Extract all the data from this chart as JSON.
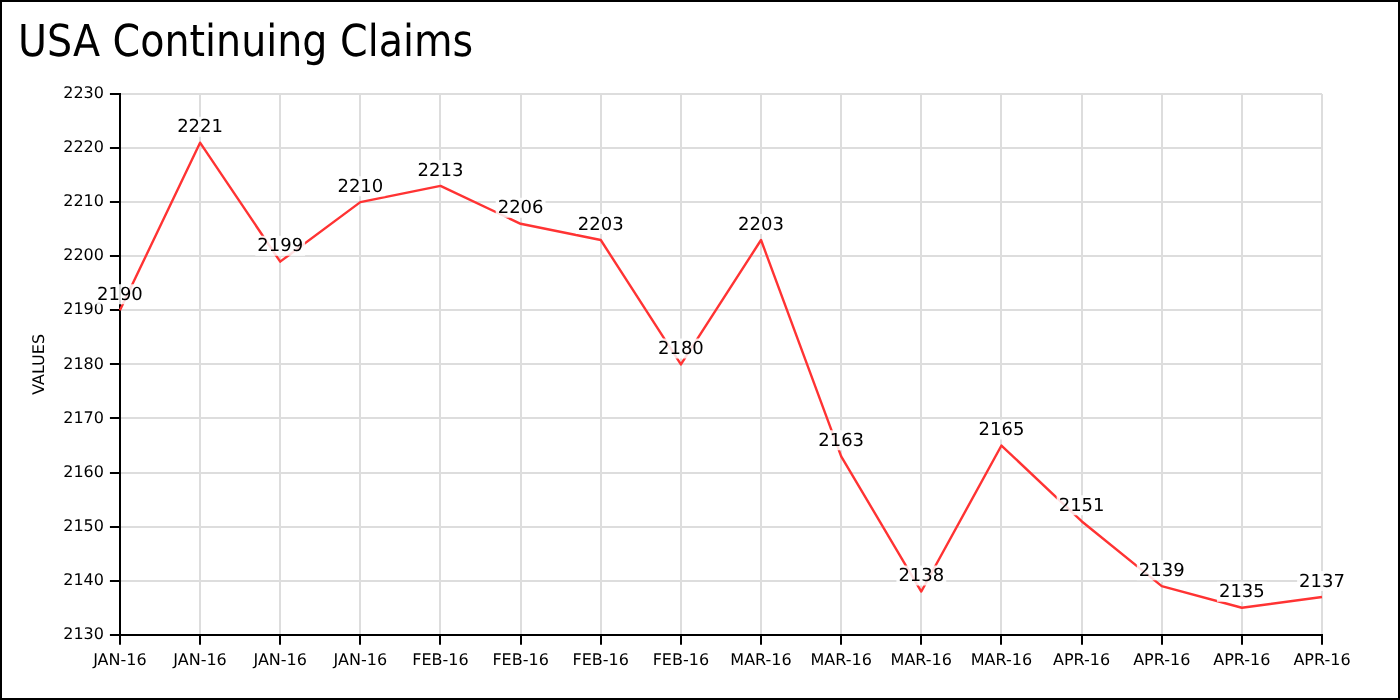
{
  "chart_data": {
    "type": "line",
    "title": "USA Continuing Claims",
    "ylabel": "VALUES",
    "categories": [
      "JAN-16",
      "JAN-16",
      "JAN-16",
      "JAN-16",
      "FEB-16",
      "FEB-16",
      "FEB-16",
      "FEB-16",
      "MAR-16",
      "MAR-16",
      "MAR-16",
      "MAR-16",
      "APR-16",
      "APR-16",
      "APR-16",
      "APR-16"
    ],
    "series": [
      {
        "color": "#ff3333",
        "values": [
          2190,
          2221,
          2199,
          2210,
          2213,
          2206,
          2203,
          2180,
          2203,
          2163,
          2138,
          2165,
          2151,
          2139,
          2135,
          2137
        ]
      }
    ],
    "ylim": [
      2130,
      2230
    ],
    "yticks": [
      2130,
      2140,
      2150,
      2160,
      2170,
      2180,
      2190,
      2200,
      2210,
      2220,
      2230
    ],
    "grid": true,
    "legend": false,
    "marker": "none",
    "line_style": "solid",
    "data_labels": true
  }
}
